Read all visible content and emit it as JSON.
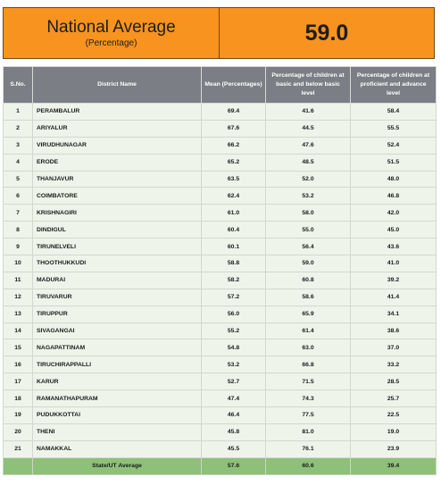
{
  "header": {
    "title": "National Average",
    "subtitle": "(Percentage)",
    "value": "59.0"
  },
  "table": {
    "columns": [
      "S.No.",
      "District Name",
      "Mean (Percentages)",
      "Percentage of children at basic and below basic level",
      "Percentage of children at proficient and advance level"
    ],
    "rows": [
      [
        "1",
        "PERAMBALUR",
        "69.4",
        "41.6",
        "58.4"
      ],
      [
        "2",
        "ARIYALUR",
        "67.6",
        "44.5",
        "55.5"
      ],
      [
        "3",
        "VIRUDHUNAGAR",
        "66.2",
        "47.6",
        "52.4"
      ],
      [
        "4",
        "ERODE",
        "65.2",
        "48.5",
        "51.5"
      ],
      [
        "5",
        "THANJAVUR",
        "63.5",
        "52.0",
        "48.0"
      ],
      [
        "6",
        "COIMBATORE",
        "62.4",
        "53.2",
        "46.8"
      ],
      [
        "7",
        "KRISHNAGIRI",
        "61.0",
        "58.0",
        "42.0"
      ],
      [
        "8",
        "DINDIGUL",
        "60.4",
        "55.0",
        "45.0"
      ],
      [
        "9",
        "TIRUNELVELI",
        "60.1",
        "56.4",
        "43.6"
      ],
      [
        "10",
        "THOOTHUKKUDI",
        "58.8",
        "59.0",
        "41.0"
      ],
      [
        "11",
        "MADURAI",
        "58.2",
        "60.8",
        "39.2"
      ],
      [
        "12",
        "TIRUVARUR",
        "57.2",
        "58.6",
        "41.4"
      ],
      [
        "13",
        "TIRUPPUR",
        "56.0",
        "65.9",
        "34.1"
      ],
      [
        "14",
        "SIVAGANGAI",
        "55.2",
        "61.4",
        "38.6"
      ],
      [
        "15",
        "NAGAPATTINAM",
        "54.8",
        "63.0",
        "37.0"
      ],
      [
        "16",
        "TIRUCHIRAPPALLI",
        "53.2",
        "66.8",
        "33.2"
      ],
      [
        "17",
        "KARUR",
        "52.7",
        "71.5",
        "28.5"
      ],
      [
        "18",
        "RAMANATHAPURAM",
        "47.4",
        "74.3",
        "25.7"
      ],
      [
        "19",
        "PUDUKKOTTAI",
        "46.4",
        "77.5",
        "22.5"
      ],
      [
        "20",
        "THENI",
        "45.8",
        "81.0",
        "19.0"
      ],
      [
        "21",
        "NAMAKKAL",
        "45.5",
        "76.1",
        "23.9"
      ]
    ],
    "average_row": {
      "label": "State/UT Average",
      "mean": "57.6",
      "basic": "60.6",
      "proficient": "39.4"
    }
  },
  "colors": {
    "header_bg": "#f7931e",
    "table_header_bg": "#7b7e84",
    "row_bg": "#eef4ea",
    "average_row_bg": "#8fc07a"
  }
}
